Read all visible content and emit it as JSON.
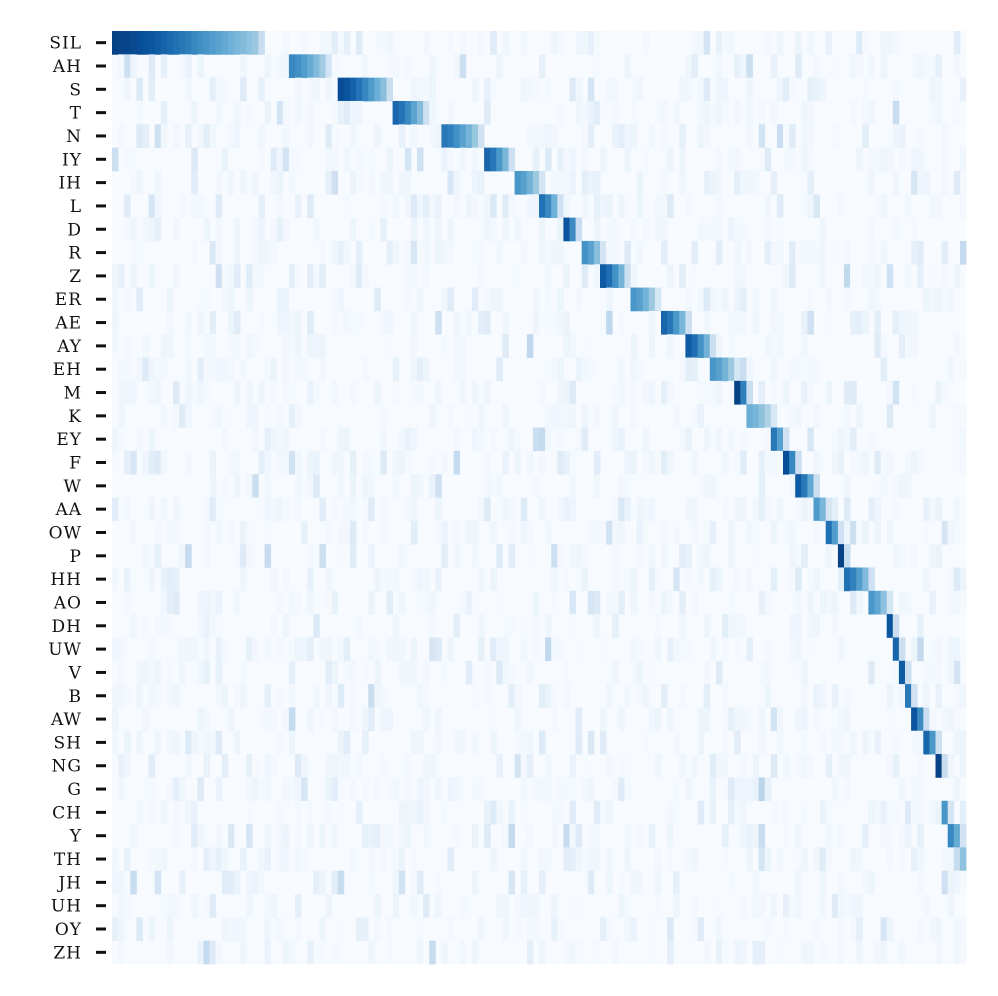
{
  "chart_data": {
    "type": "heatmap",
    "title": "",
    "xlabel": "",
    "ylabel": "",
    "rows": [
      "SIL",
      "AH",
      "S",
      "T",
      "N",
      "IY",
      "IH",
      "L",
      "D",
      "R",
      "Z",
      "ER",
      "AE",
      "AY",
      "EH",
      "M",
      "K",
      "EY",
      "F",
      "W",
      "AA",
      "OW",
      "P",
      "HH",
      "AO",
      "DH",
      "UW",
      "V",
      "B",
      "AW",
      "SH",
      "NG",
      "G",
      "CH",
      "Y",
      "TH",
      "JH",
      "UH",
      "OY",
      "ZH"
    ],
    "n_columns": 140,
    "x_tick_labels": false,
    "colorbar": false,
    "value_range": [
      0,
      1
    ],
    "colormap": "Blues",
    "dominant_spans": [
      {
        "row": "SIL",
        "start": 0,
        "end": 24,
        "peak": 0.95
      },
      {
        "row": "AH",
        "start": 29,
        "end": 35,
        "peak": 0.75
      },
      {
        "row": "S",
        "start": 37,
        "end": 45,
        "peak": 0.92
      },
      {
        "row": "T",
        "start": 46,
        "end": 51,
        "peak": 0.85
      },
      {
        "row": "N",
        "start": 54,
        "end": 60,
        "peak": 0.8
      },
      {
        "row": "IY",
        "start": 61,
        "end": 65,
        "peak": 0.85
      },
      {
        "row": "IH",
        "start": 66,
        "end": 70,
        "peak": 0.7
      },
      {
        "row": "L",
        "start": 70,
        "end": 73,
        "peak": 0.82
      },
      {
        "row": "D",
        "start": 74,
        "end": 76,
        "peak": 0.9
      },
      {
        "row": "R",
        "start": 77,
        "end": 80,
        "peak": 0.72
      },
      {
        "row": "Z",
        "start": 80,
        "end": 84,
        "peak": 0.88
      },
      {
        "row": "ER",
        "start": 85,
        "end": 89,
        "peak": 0.7
      },
      {
        "row": "AE",
        "start": 90,
        "end": 94,
        "peak": 0.85
      },
      {
        "row": "AY",
        "start": 94,
        "end": 98,
        "peak": 0.88
      },
      {
        "row": "EH",
        "start": 98,
        "end": 102,
        "peak": 0.7
      },
      {
        "row": "M",
        "start": 102,
        "end": 104,
        "peak": 0.95
      },
      {
        "row": "K",
        "start": 104,
        "end": 108,
        "peak": 0.6
      },
      {
        "row": "EY",
        "start": 108,
        "end": 110,
        "peak": 0.8
      },
      {
        "row": "F",
        "start": 110,
        "end": 112,
        "peak": 0.92
      },
      {
        "row": "W",
        "start": 112,
        "end": 115,
        "peak": 0.88
      },
      {
        "row": "AA",
        "start": 115,
        "end": 117,
        "peak": 0.68
      },
      {
        "row": "OW",
        "start": 117,
        "end": 119,
        "peak": 0.82
      },
      {
        "row": "P",
        "start": 119,
        "end": 120,
        "peak": 0.95
      },
      {
        "row": "HH",
        "start": 120,
        "end": 124,
        "peak": 0.82
      },
      {
        "row": "AO",
        "start": 124,
        "end": 127,
        "peak": 0.7
      },
      {
        "row": "DH",
        "start": 127,
        "end": 128,
        "peak": 0.9
      },
      {
        "row": "UW",
        "start": 128,
        "end": 129,
        "peak": 0.85
      },
      {
        "row": "V",
        "start": 129,
        "end": 130,
        "peak": 0.88
      },
      {
        "row": "B",
        "start": 130,
        "end": 131,
        "peak": 0.8
      },
      {
        "row": "AW",
        "start": 131,
        "end": 133,
        "peak": 0.9
      },
      {
        "row": "SH",
        "start": 133,
        "end": 135,
        "peak": 0.85
      },
      {
        "row": "NG",
        "start": 135,
        "end": 136,
        "peak": 0.95
      },
      {
        "row": "G",
        "start": 106,
        "end": 107,
        "peak": 0.35
      },
      {
        "row": "CH",
        "start": 136,
        "end": 137,
        "peak": 0.7
      },
      {
        "row": "Y",
        "start": 137,
        "end": 139,
        "peak": 0.75
      },
      {
        "row": "TH",
        "start": 139,
        "end": 140,
        "peak": 0.5
      },
      {
        "row": "JH",
        "start": 136,
        "end": 137,
        "peak": 0.25
      },
      {
        "row": "UH",
        "start": 118,
        "end": 119,
        "peak": 0.15
      },
      {
        "row": "OY",
        "start": 126,
        "end": 127,
        "peak": 0.2
      },
      {
        "row": "ZH",
        "start": 138,
        "end": 139,
        "peak": 0.05
      }
    ]
  }
}
